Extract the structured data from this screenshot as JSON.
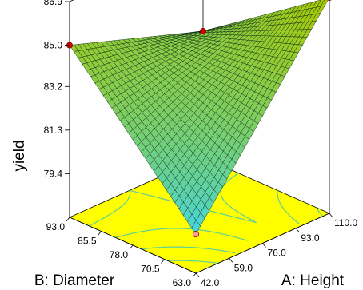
{
  "chart_data": {
    "type": "surface3d",
    "zlabel": "yield",
    "xlabel": "A: Height",
    "ylabel": "B: Diameter",
    "x_ticks": [
      "42.0",
      "59.0",
      "76.0",
      "93.0",
      "110.0"
    ],
    "y_ticks": [
      "63.0",
      "70.5",
      "78.0",
      "85.5",
      "93.0"
    ],
    "z_ticks": [
      "79.4",
      "81.3",
      "83.2",
      "85.0",
      "86.9"
    ],
    "xlim": [
      42,
      110
    ],
    "ylim": [
      63,
      93
    ],
    "zlim": [
      77.5,
      86.9
    ],
    "corner_points": [
      {
        "x": 42,
        "y": 63,
        "z": 79.2
      },
      {
        "x": 42,
        "y": 93,
        "z": 85.0
      },
      {
        "x": 110,
        "y": 93,
        "z": 83.0
      },
      {
        "x": 110,
        "y": 63,
        "z": 86.9
      }
    ],
    "colors": {
      "surface_high": "#aac800",
      "surface_low": "#3ed6f0",
      "floor": "#ffff00",
      "contour": "#5ccf9a",
      "point_red": "#d40000",
      "point_pink": "#ff9a9a"
    }
  }
}
